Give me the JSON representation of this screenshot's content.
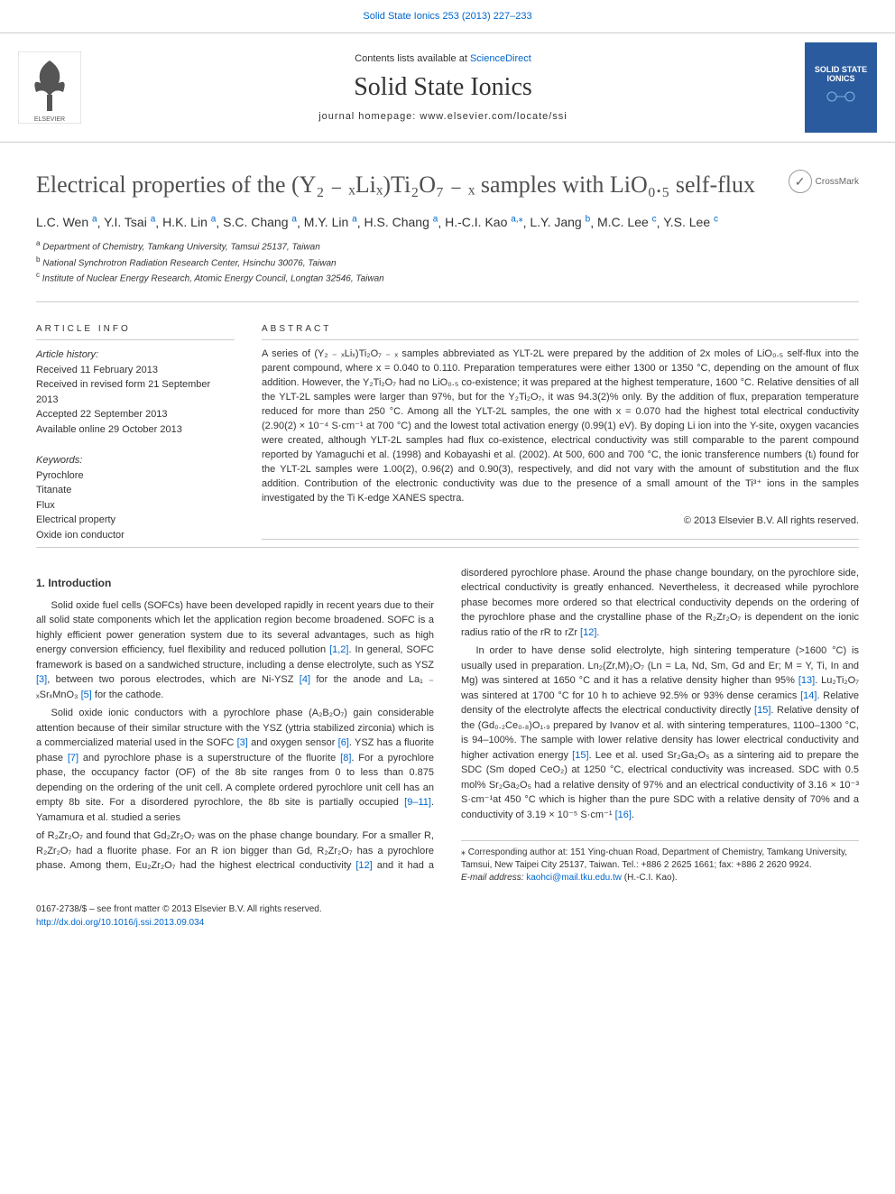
{
  "header": {
    "top_link": "Solid State Ionics 253 (2013) 227–233",
    "contents_text": "Contents lists available at ",
    "contents_link": "ScienceDirect",
    "journal_name": "Solid State Ionics",
    "homepage_label": "journal homepage: ",
    "homepage_url": "www.elsevier.com/locate/ssi",
    "journal_logo_title": "SOLID STATE IONICS"
  },
  "title": "Electrical properties of the (Y₂ ₋ ₓLiₓ)Ti₂O₇ ₋ ₓ samples with LiO₀.₅ self-flux",
  "crossmark_label": "CrossMark",
  "authors": [
    {
      "name": "L.C. Wen",
      "aff": "a"
    },
    {
      "name": "Y.I. Tsai",
      "aff": "a"
    },
    {
      "name": "H.K. Lin",
      "aff": "a"
    },
    {
      "name": "S.C. Chang",
      "aff": "a"
    },
    {
      "name": "M.Y. Lin",
      "aff": "a"
    },
    {
      "name": "H.S. Chang",
      "aff": "a"
    },
    {
      "name": "H.-C.I. Kao",
      "aff": "a,",
      "corr": true
    },
    {
      "name": "L.Y. Jang",
      "aff": "b"
    },
    {
      "name": "M.C. Lee",
      "aff": "c"
    },
    {
      "name": "Y.S. Lee",
      "aff": "c"
    }
  ],
  "affiliations": [
    {
      "sup": "a",
      "text": "Department of Chemistry, Tamkang University, Tamsui 25137, Taiwan"
    },
    {
      "sup": "b",
      "text": "National Synchrotron Radiation Research Center, Hsinchu 30076, Taiwan"
    },
    {
      "sup": "c",
      "text": "Institute of Nuclear Energy Research, Atomic Energy Council, Longtan 32546, Taiwan"
    }
  ],
  "article_info": {
    "label": "ARTICLE INFO",
    "history_label": "Article history:",
    "history": [
      "Received 11 February 2013",
      "Received in revised form 21 September 2013",
      "Accepted 22 September 2013",
      "Available online 29 October 2013"
    ],
    "keywords_label": "Keywords:",
    "keywords": [
      "Pyrochlore",
      "Titanate",
      "Flux",
      "Electrical property",
      "Oxide ion conductor"
    ]
  },
  "abstract": {
    "label": "ABSTRACT",
    "text": "A series of (Y₂ ₋ ₓLiₓ)Ti₂O₇ ₋ ₓ samples abbreviated as YLT-2L were prepared by the addition of 2x moles of LiO₀.₅ self-flux into the parent compound, where x = 0.040 to 0.110. Preparation temperatures were either 1300 or 1350 °C, depending on the amount of flux addition. However, the Y₂Ti₂O₇ had no LiO₀.₅ co-existence; it was prepared at the highest temperature, 1600 °C. Relative densities of all the YLT-2L samples were larger than 97%, but for the Y₂Ti₂O₇, it was 94.3(2)% only. By the addition of flux, preparation temperature reduced for more than 250 °C. Among all the YLT-2L samples, the one with x = 0.070 had the highest total electrical conductivity (2.90(2) × 10⁻⁴ S·cm⁻¹ at 700 °C) and the lowest total activation energy (0.99(1) eV). By doping Li ion into the Y-site, oxygen vacancies were created, although YLT-2L samples had flux co-existence, electrical conductivity was still comparable to the parent compound reported by Yamaguchi et al. (1998) and Kobayashi et al. (2002). At 500, 600 and 700 °C, the ionic transference numbers (tᵢ) found for the YLT-2L samples were 1.00(2), 0.96(2) and 0.90(3), respectively, and did not vary with the amount of substitution and the flux addition. Contribution of the electronic conductivity was due to the presence of a small amount of the Ti³⁺ ions in the samples investigated by the Ti K-edge XANES spectra.",
    "copyright": "© 2013 Elsevier B.V. All rights reserved."
  },
  "body": {
    "heading": "1. Introduction",
    "paragraphs": [
      "Solid oxide fuel cells (SOFCs) have been developed rapidly in recent years due to their all solid state components which let the application region become broadened. SOFC is a highly efficient power generation system due to its several advantages, such as high energy conversion efficiency, fuel flexibility and reduced pollution [1,2]. In general, SOFC framework is based on a sandwiched structure, including a dense electrolyte, such as YSZ [3], between two porous electrodes, which are Ni-YSZ [4] for the anode and La₁ ₋ ₓSrₓMnO₃ [5] for the cathode.",
      "Solid oxide ionic conductors with a pyrochlore phase (A₂B₂O₇) gain considerable attention because of their similar structure with the YSZ (yttria stabilized zirconia) which is a commercialized material used in the SOFC [3] and oxygen sensor [6]. YSZ has a fluorite phase [7] and pyrochlore phase is a superstructure of the fluorite [8]. For a pyrochlore phase, the occupancy factor (OF) of the 8b site ranges from 0 to less than 0.875 depending on the ordering of the unit cell. A complete ordered pyrochlore unit cell has an empty 8b site. For a disordered pyrochlore, the 8b site is partially occupied [9–11]. Yamamura et al. studied a series",
      "of R₂Zr₂O₇ and found that Gd₂Zr₂O₇ was on the phase change boundary. For a smaller R, R₂Zr₂O₇ had a fluorite phase. For an R ion bigger than Gd, R₂Zr₂O₇ has a pyrochlore phase. Among them, Eu₂Zr₂O₇ had the highest electrical conductivity [12] and it had a disordered pyrochlore phase. Around the phase change boundary, on the pyrochlore side, electrical conductivity is greatly enhanced. Nevertheless, it decreased while pyrochlore phase becomes more ordered so that electrical conductivity depends on the ordering of the pyrochlore phase and the crystalline phase of the R₂Zr₂O₇ is dependent on the ionic radius ratio of the rR to rZr [12].",
      "In order to have dense solid electrolyte, high sintering temperature (>1600 °C) is usually used in preparation. Ln₂(Zr,M)₂O₇ (Ln = La, Nd, Sm, Gd and Er; M = Y, Ti, In and Mg) was sintered at 1650 °C and it has a relative density higher than 95% [13]. Lu₂Ti₂O₇ was sintered at 1700 °C for 10 h to achieve 92.5% or 93% dense ceramics [14]. Relative density of the electrolyte affects the electrical conductivity directly [15]. Relative density of the (Gd₀.₂Ce₀.₈)O₁.₉ prepared by Ivanov et al. with sintering temperatures, 1100–1300 °C, is 94–100%. The sample with lower relative density has lower electrical conductivity and higher activation energy [15]. Lee et al. used Sr₂Ga₂O₅ as a sintering aid to prepare the SDC (Sm doped CeO₂) at 1250 °C, electrical conductivity was increased. SDC with 0.5 mol% Sr₂Ga₂O₅ had a relative density of 97% and an electrical conductivity of 3.16 × 10⁻³ S·cm⁻¹at 450 °C which is higher than the pure SDC with a relative density of 70% and a conductivity of 3.19 × 10⁻⁵ S·cm⁻¹ [16]."
    ]
  },
  "footnote": {
    "corr_text": "⁎ Corresponding author at: 151 Ying-chuan Road, Department of Chemistry, Tamkang University, Tamsui, New Taipei City 25137, Taiwan. Tel.: +886 2 2625 1661; fax: +886 2 2620 9924.",
    "email_label": "E-mail address: ",
    "email": "kaohci@mail.tku.edu.tw",
    "email_suffix": " (H.-C.I. Kao)."
  },
  "footer": {
    "issn_line": "0167-2738/$ – see front matter © 2013 Elsevier B.V. All rights reserved.",
    "doi": "http://dx.doi.org/10.1016/j.ssi.2013.09.034"
  },
  "colors": {
    "link": "#0066cc",
    "text": "#333333",
    "border": "#cccccc",
    "journal_logo_bg": "#2a5b9e"
  }
}
